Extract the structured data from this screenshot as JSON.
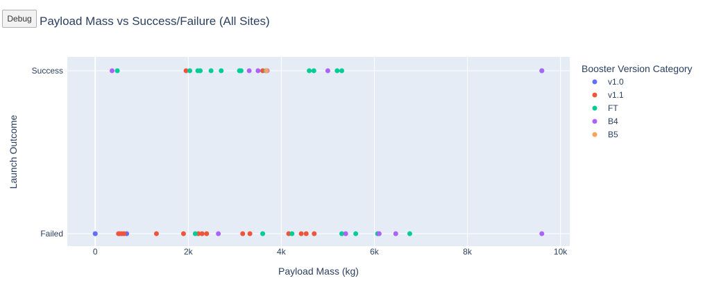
{
  "debug_button": {
    "label": "Debug"
  },
  "colors": {
    "plot_bg": "#e5ecf6",
    "grid": "#ffffff",
    "text": "#2a3f5f",
    "v1.0": "#636efa",
    "v1.1": "#ef553b",
    "FT": "#00cc96",
    "B4": "#ab63fa",
    "B5": "#ffa15a"
  },
  "chart_data": {
    "type": "scatter",
    "title": "Payload Mass vs Success/Failure (All Sites)",
    "xlabel": "Payload Mass (kg)",
    "ylabel": "Launch Outcome",
    "xlim": [
      -600,
      10200
    ],
    "x_ticks": [
      0,
      2000,
      4000,
      6000,
      8000,
      10000
    ],
    "x_tick_labels": [
      "0",
      "2k",
      "4k",
      "6k",
      "8k",
      "10k"
    ],
    "categories": [
      "Failed",
      "Success"
    ],
    "legend": {
      "title": "Booster Version Category",
      "position": "right"
    },
    "series": [
      {
        "name": "v1.0",
        "points": [
          [
            0,
            "Failed"
          ],
          [
            0,
            "Failed"
          ],
          [
            525,
            "Failed"
          ],
          [
            677,
            "Failed"
          ]
        ]
      },
      {
        "name": "v1.1",
        "points": [
          [
            1952,
            "Success"
          ],
          [
            3600,
            "Success"
          ],
          [
            500,
            "Failed"
          ],
          [
            570,
            "Failed"
          ],
          [
            620,
            "Failed"
          ],
          [
            1316,
            "Failed"
          ],
          [
            1898,
            "Failed"
          ],
          [
            2216,
            "Failed"
          ],
          [
            2296,
            "Failed"
          ],
          [
            2395,
            "Failed"
          ],
          [
            3170,
            "Failed"
          ],
          [
            3325,
            "Failed"
          ],
          [
            4159,
            "Failed"
          ],
          [
            4428,
            "Failed"
          ],
          [
            4535,
            "Failed"
          ],
          [
            4707,
            "Failed"
          ]
        ]
      },
      {
        "name": "FT",
        "points": [
          [
            475,
            "Success"
          ],
          [
            2034,
            "Success"
          ],
          [
            2205,
            "Success"
          ],
          [
            2257,
            "Success"
          ],
          [
            2490,
            "Success"
          ],
          [
            2708,
            "Success"
          ],
          [
            3100,
            "Success"
          ],
          [
            3136,
            "Success"
          ],
          [
            3669,
            "Success"
          ],
          [
            4600,
            "Success"
          ],
          [
            4700,
            "Success"
          ],
          [
            5200,
            "Success"
          ],
          [
            5300,
            "Success"
          ],
          [
            9600,
            "Success"
          ],
          [
            2150,
            "Failed"
          ],
          [
            3600,
            "Failed"
          ],
          [
            4230,
            "Failed"
          ],
          [
            5300,
            "Failed"
          ],
          [
            5600,
            "Failed"
          ],
          [
            6070,
            "Failed"
          ],
          [
            6761,
            "Failed"
          ]
        ]
      },
      {
        "name": "B4",
        "points": [
          [
            362,
            "Success"
          ],
          [
            3310,
            "Success"
          ],
          [
            3500,
            "Success"
          ],
          [
            3696,
            "Success"
          ],
          [
            5000,
            "Success"
          ],
          [
            9600,
            "Success"
          ],
          [
            2647,
            "Failed"
          ],
          [
            5384,
            "Failed"
          ],
          [
            6460,
            "Failed"
          ],
          [
            6104,
            "Failed"
          ],
          [
            9600,
            "Failed"
          ]
        ]
      },
      {
        "name": "B5",
        "points": [
          [
            3681,
            "Success"
          ]
        ]
      }
    ]
  }
}
